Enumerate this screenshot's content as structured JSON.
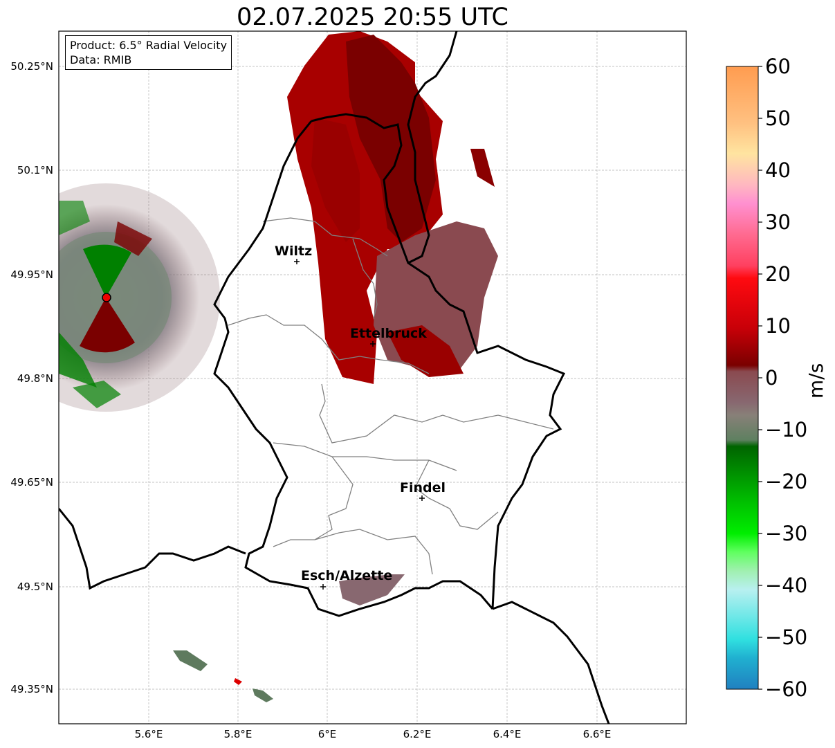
{
  "title": "02.07.2025 20:55 UTC",
  "info": {
    "product": "Product: 6.5° Radial Velocity",
    "data": "Data: RMIB"
  },
  "lat_ticks": [
    "50.25°N",
    "50.1°N",
    "49.95°N",
    "49.8°N",
    "49.65°N",
    "49.5°N",
    "49.35°N"
  ],
  "lon_ticks": [
    "5.6°E",
    "5.8°E",
    "6°E",
    "6.2°E",
    "6.4°E",
    "6.6°E"
  ],
  "cities": [
    {
      "name": "Wiltz"
    },
    {
      "name": "Ettelbruck"
    },
    {
      "name": "Findel"
    },
    {
      "name": "Esch/Alzette"
    }
  ],
  "colorbar": {
    "unit": "m/s",
    "ticks": [
      "60",
      "50",
      "40",
      "30",
      "20",
      "10",
      "0",
      "−10",
      "−20",
      "−30",
      "−40",
      "−50",
      "−60"
    ],
    "colors": {
      "orange": "#ffa05a",
      "peach": "#ffd890",
      "pink": "#ff80c0",
      "red": "#ee1c24",
      "darkred": "#8b0000",
      "mauve": "#8a6a70",
      "gray_green": "#6a8060",
      "green": "#00a800",
      "lightgreen": "#40ff40",
      "pale_cyan": "#a8f0f0",
      "cyan": "#30e0e0",
      "blue": "#2080c0"
    }
  }
}
